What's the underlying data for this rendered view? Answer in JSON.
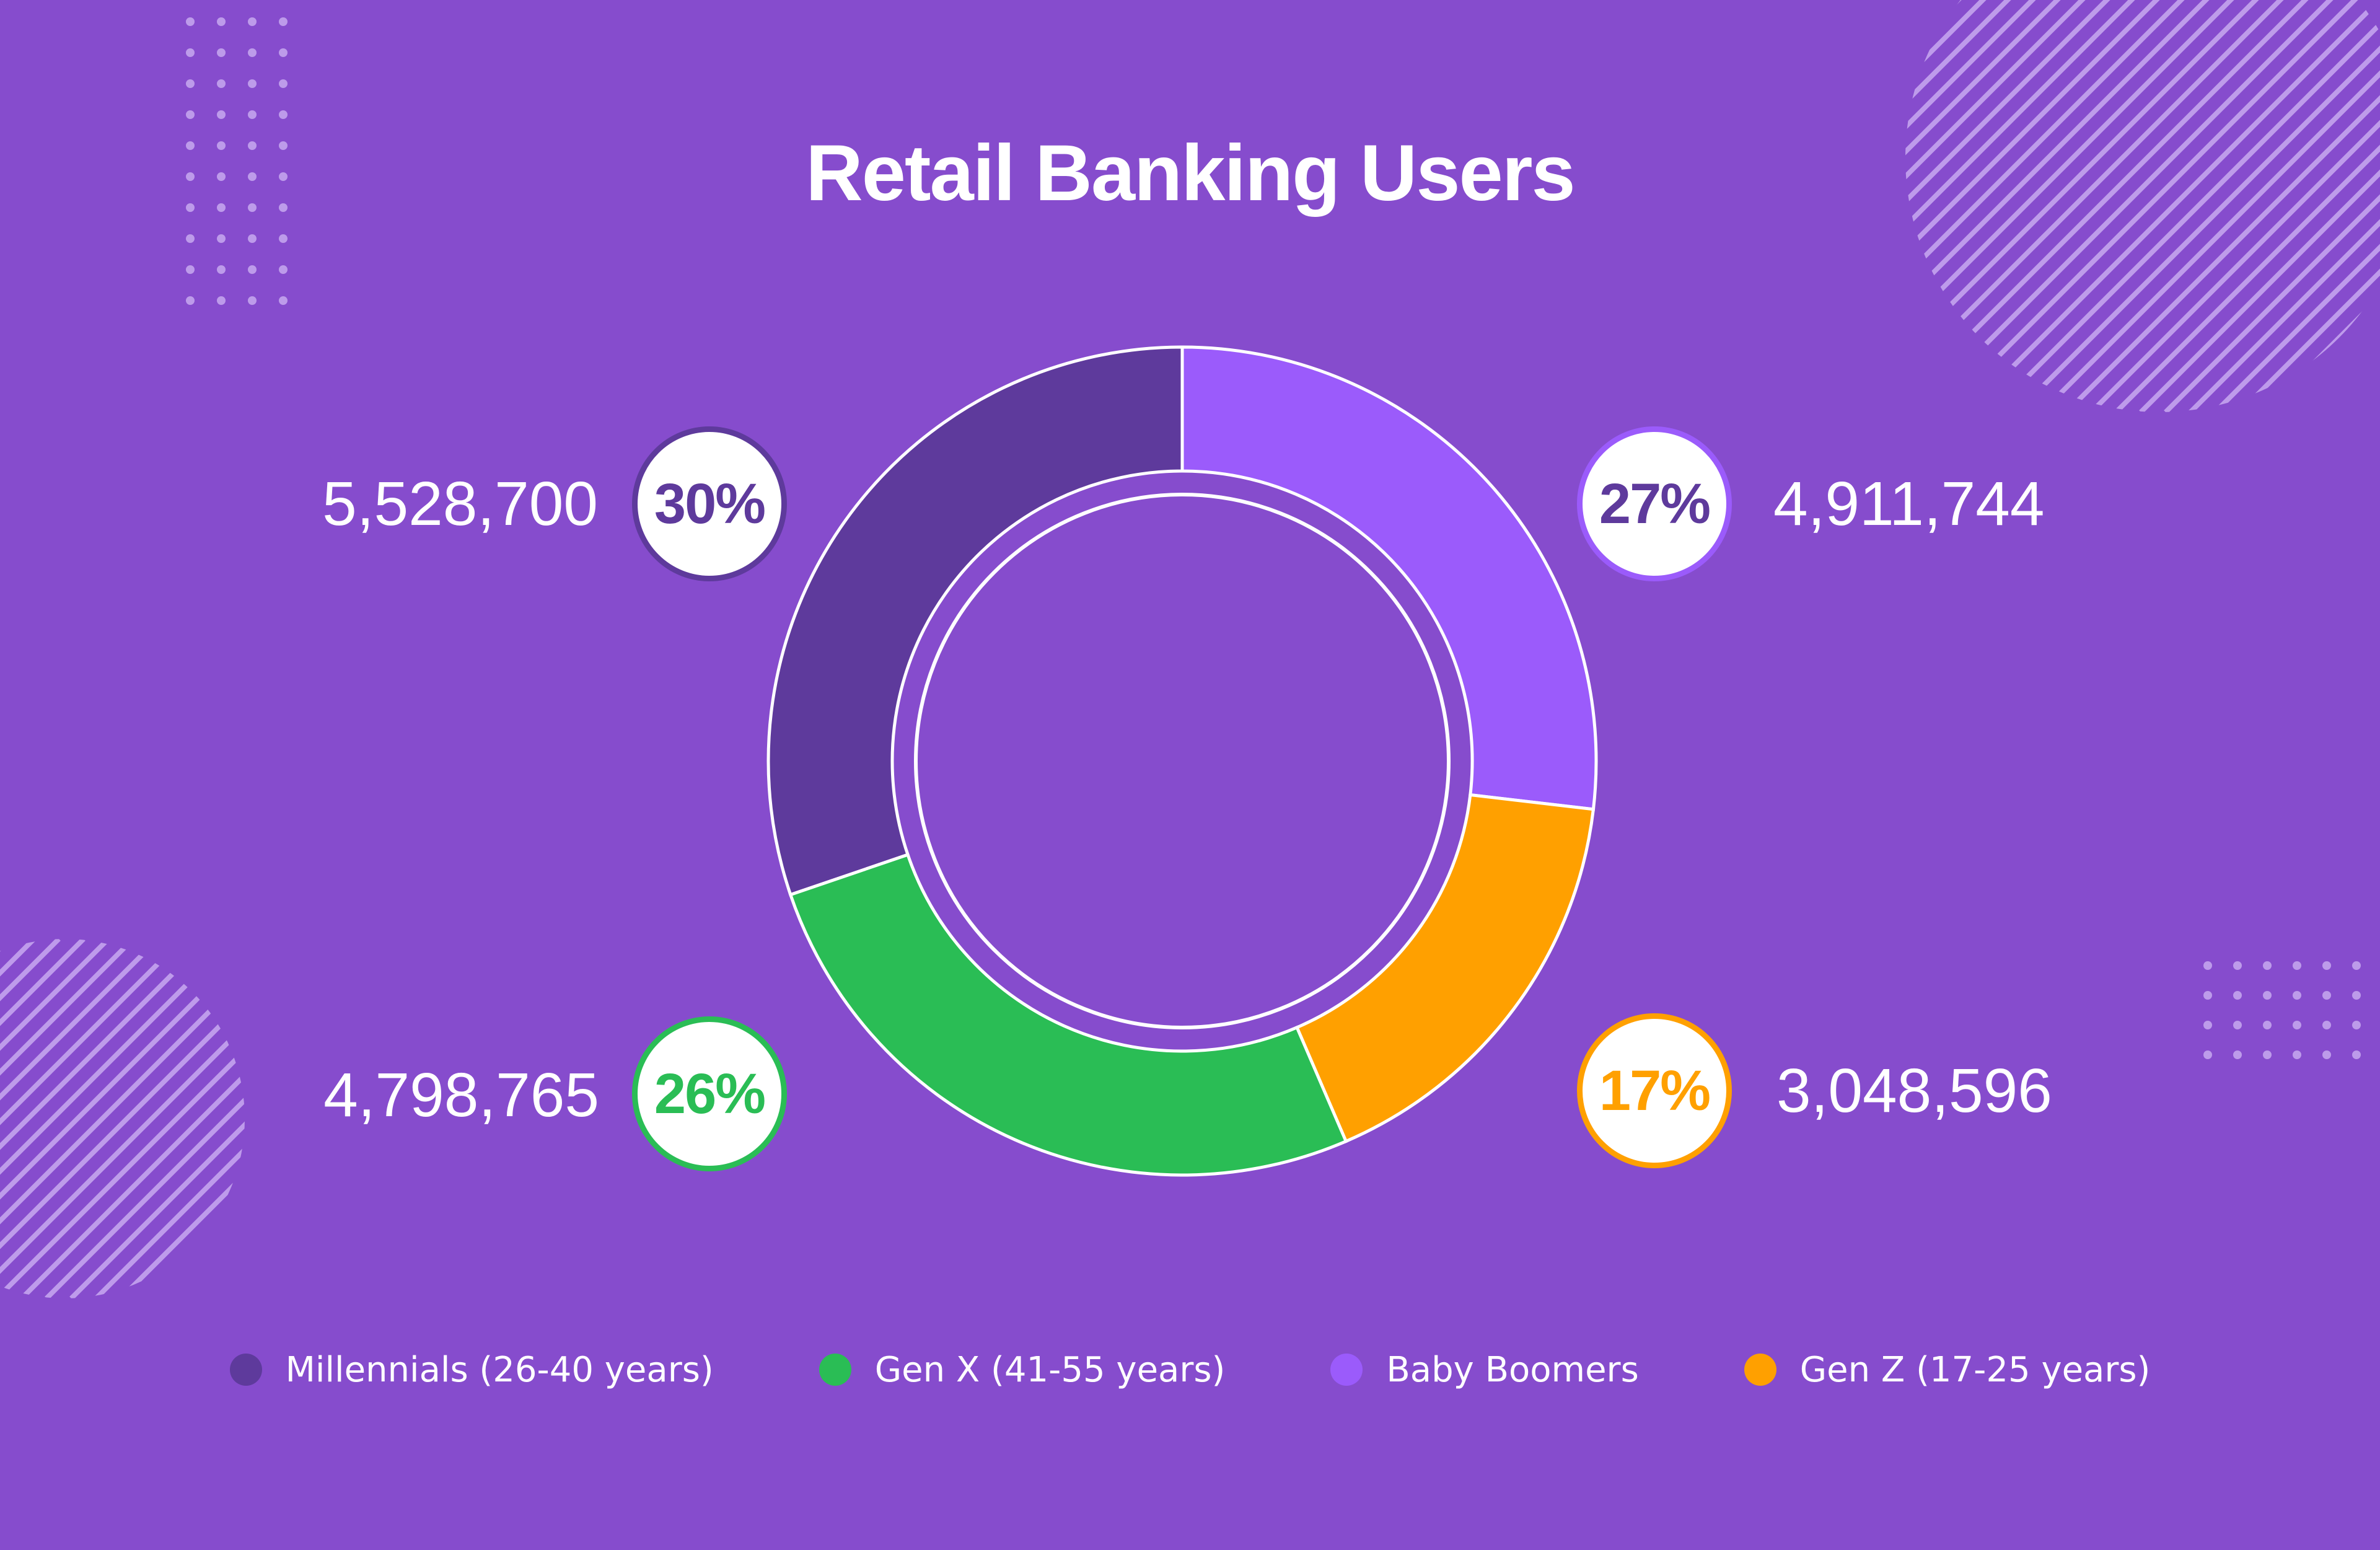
{
  "chart_data": {
    "type": "pie",
    "donut": true,
    "title": "Retail Banking Users",
    "categories": [
      "Millennials (26-40 years)",
      "Baby Boomers",
      "Gen Z (17-25 years)",
      "Gen X (41-55 years)"
    ],
    "values": [
      5528700,
      4911744,
      3048596,
      4798765
    ],
    "value_labels": [
      "5,528,700",
      "4,911,744",
      "3,048,596",
      "4,798,765"
    ],
    "percent_labels": [
      "30%",
      "27%",
      "17%",
      "26%"
    ],
    "colors": [
      "#5e3a9c",
      "#9b5bfb",
      "#ffa000",
      "#2abd55"
    ],
    "legend": {
      "position": "bottom",
      "entries": [
        {
          "label": "Millennials (26-40 years)",
          "color": "#5e3a9c"
        },
        {
          "label": "Gen X (41-55 years)",
          "color": "#2abd55"
        },
        {
          "label": "Baby Boomers",
          "color": "#9b5bfb"
        },
        {
          "label": "Gen Z (17-25 years)",
          "color": "#ffa000"
        }
      ]
    }
  },
  "background_color": "#864ccd"
}
